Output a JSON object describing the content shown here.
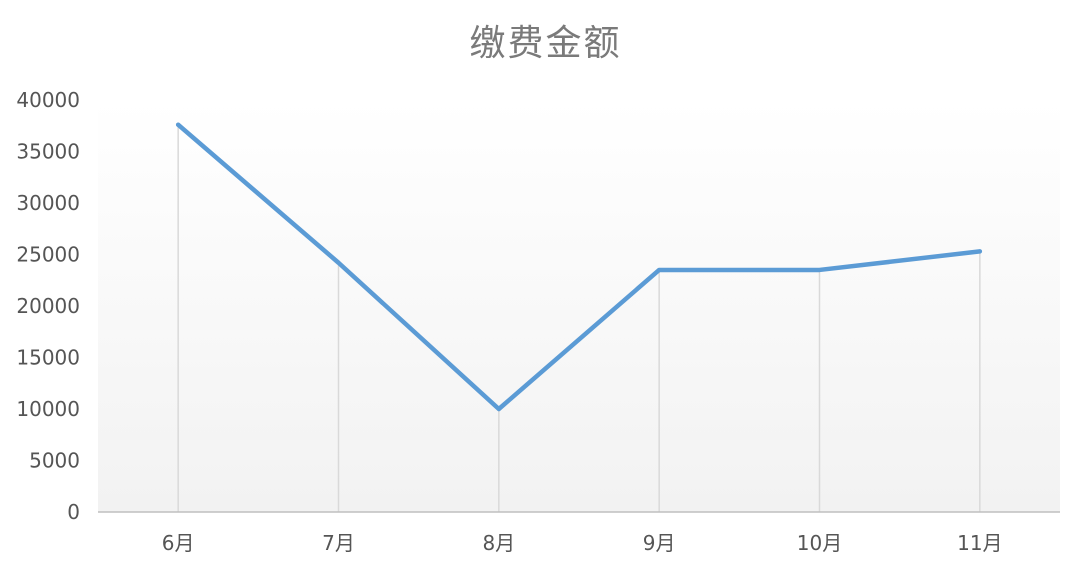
{
  "chart_data": {
    "type": "line",
    "title": "缴费金额",
    "categories": [
      "6月",
      "7月",
      "8月",
      "9月",
      "10月",
      "11月"
    ],
    "series": [
      {
        "values": [
          37600,
          24200,
          10000,
          23500,
          23500,
          25300
        ]
      }
    ],
    "ylim": [
      0,
      40000
    ],
    "yticks": [
      "0",
      "5000",
      "10000",
      "15000",
      "20000",
      "25000",
      "30000",
      "35000",
      "40000"
    ],
    "drop_lines": true,
    "legend": "none",
    "colors": {
      "line": "#5b9bd5",
      "drop_line": "#d9d9d9",
      "axis": "#bfbfbf",
      "plot_fill_top": "#ffffff",
      "plot_fill_bottom": "#f2f2f2"
    }
  }
}
